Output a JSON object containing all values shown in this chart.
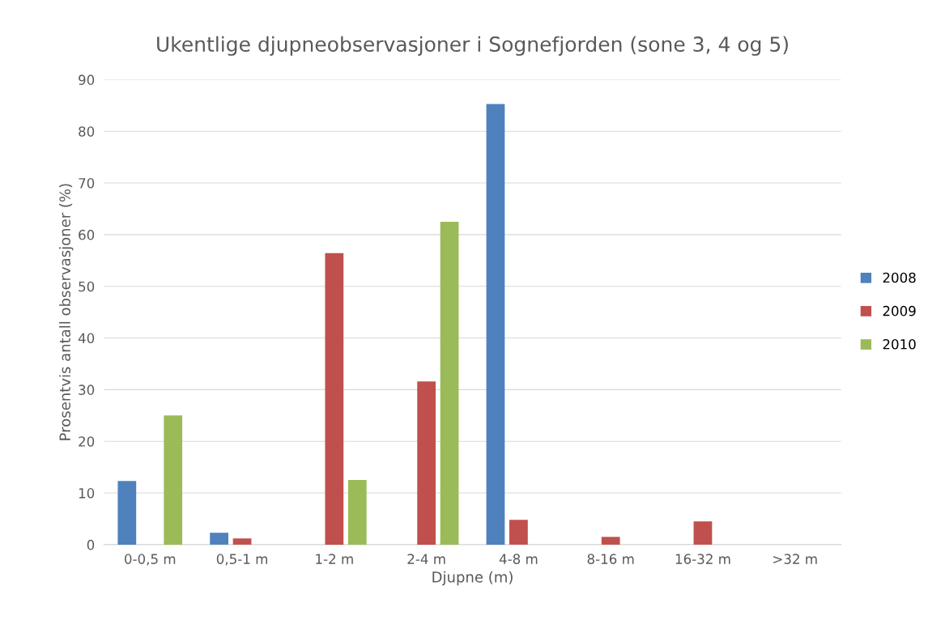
{
  "chart_data": {
    "type": "bar",
    "title": "Ukentlige djupneobservasjoner i Sognefjorden (sone 3, 4 og 5)",
    "xlabel": "Djupne (m)",
    "ylabel": "Prosentvis antall observasjoner (%)",
    "categories": [
      "0-0,5 m",
      "0,5-1 m",
      "1-2 m",
      "2-4 m",
      "4-8 m",
      "8-16 m",
      "16-32 m",
      ">32 m"
    ],
    "series": [
      {
        "name": "2008",
        "color": "#4f81bd",
        "values": [
          12.3,
          2.3,
          0,
          0,
          85.3,
          0,
          0,
          0
        ]
      },
      {
        "name": "2009",
        "color": "#c0504d",
        "values": [
          0,
          1.2,
          56.4,
          31.6,
          4.8,
          1.5,
          4.5,
          0
        ]
      },
      {
        "name": "2010",
        "color": "#9bbb59",
        "values": [
          25,
          0,
          12.5,
          62.5,
          0,
          0,
          0,
          0
        ]
      }
    ],
    "ylim": [
      0,
      90
    ],
    "yticks": [
      0,
      10,
      20,
      30,
      40,
      50,
      60,
      70,
      80,
      90
    ],
    "grid": "y",
    "legend": "right"
  }
}
